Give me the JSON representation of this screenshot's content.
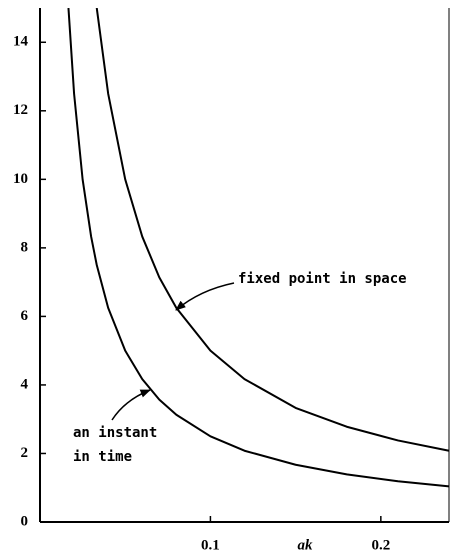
{
  "chart_data": {
    "type": "line",
    "xlabel": "ak",
    "x": [
      0.0167,
      0.02,
      0.025,
      0.03,
      0.0333,
      0.04,
      0.05,
      0.06,
      0.07,
      0.08,
      0.1,
      0.12,
      0.15,
      0.18,
      0.21,
      0.24
    ],
    "series": [
      {
        "color": "#000000",
        "values": [
          15,
          12.5,
          10,
          8.33,
          7.5,
          6.25,
          5,
          4.17,
          3.57,
          3.13,
          2.5,
          2.08,
          1.67,
          1.39,
          1.19,
          1.04
        ]
      },
      {
        "color": "#000000",
        "values": [
          null,
          null,
          null,
          null,
          15,
          12.5,
          10,
          8.33,
          7.14,
          6.25,
          5,
          4.17,
          3.33,
          2.78,
          2.38,
          2.08
        ]
      }
    ],
    "annotations": [
      "fixed point in space",
      "an instant",
      "in time"
    ],
    "xlim": [
      0,
      0.24
    ],
    "ylim": [
      0,
      15
    ],
    "xticks": [
      0.1,
      0.2
    ],
    "yticks": [
      0,
      2,
      4,
      6,
      8,
      10,
      12,
      14
    ],
    "grid": false
  }
}
